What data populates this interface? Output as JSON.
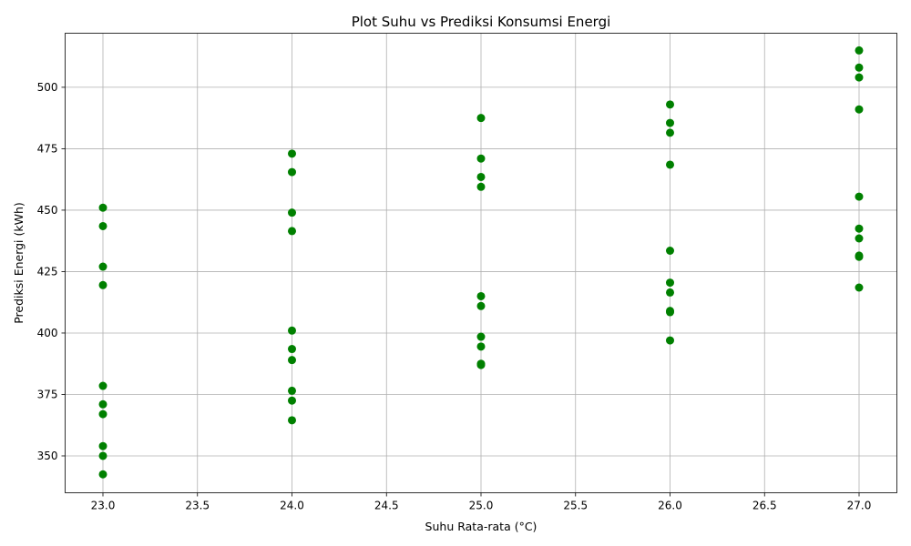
{
  "chart_data": {
    "type": "scatter",
    "title": "Plot Suhu vs Prediksi Konsumsi Energi",
    "xlabel": "Suhu Rata-rata (°C)",
    "ylabel": "Prediksi Energi (kWh)",
    "xlim": [
      22.8,
      27.2
    ],
    "ylim": [
      335,
      522
    ],
    "xticks": [
      "23.0",
      "23.5",
      "24.0",
      "24.5",
      "25.0",
      "25.5",
      "26.0",
      "26.5",
      "27.0"
    ],
    "yticks": [
      "350",
      "375",
      "400",
      "425",
      "450",
      "475",
      "500"
    ],
    "grid": true,
    "marker_color": "#008000",
    "series": [
      {
        "points": [
          [
            23,
            451
          ],
          [
            23,
            443.5
          ],
          [
            23,
            427
          ],
          [
            23,
            419.5
          ],
          [
            23,
            378.5
          ],
          [
            23,
            371
          ],
          [
            23,
            367
          ],
          [
            23,
            354
          ],
          [
            23,
            350
          ],
          [
            23,
            342.5
          ],
          [
            24,
            473
          ],
          [
            24,
            465.5
          ],
          [
            24,
            449
          ],
          [
            24,
            441.5
          ],
          [
            24,
            401
          ],
          [
            24,
            393.5
          ],
          [
            24,
            389
          ],
          [
            24,
            376.5
          ],
          [
            24,
            372.5
          ],
          [
            24,
            364.5
          ],
          [
            25,
            487.5
          ],
          [
            25,
            471
          ],
          [
            25,
            463.5
          ],
          [
            25,
            459.5
          ],
          [
            25,
            415
          ],
          [
            25,
            411
          ],
          [
            25,
            398.5
          ],
          [
            25,
            394.5
          ],
          [
            25,
            387.5
          ],
          [
            25,
            387
          ],
          [
            26,
            493
          ],
          [
            26,
            485.5
          ],
          [
            26,
            481.5
          ],
          [
            26,
            468.5
          ],
          [
            26,
            433.5
          ],
          [
            26,
            420.5
          ],
          [
            26,
            416.5
          ],
          [
            26,
            409
          ],
          [
            26,
            408.5
          ],
          [
            26,
            397
          ],
          [
            27,
            515
          ],
          [
            27,
            508
          ],
          [
            27,
            504
          ],
          [
            27,
            491
          ],
          [
            27,
            455.5
          ],
          [
            27,
            442.5
          ],
          [
            27,
            438.5
          ],
          [
            27,
            431.5
          ],
          [
            27,
            431
          ],
          [
            27,
            418.5
          ]
        ]
      }
    ]
  }
}
